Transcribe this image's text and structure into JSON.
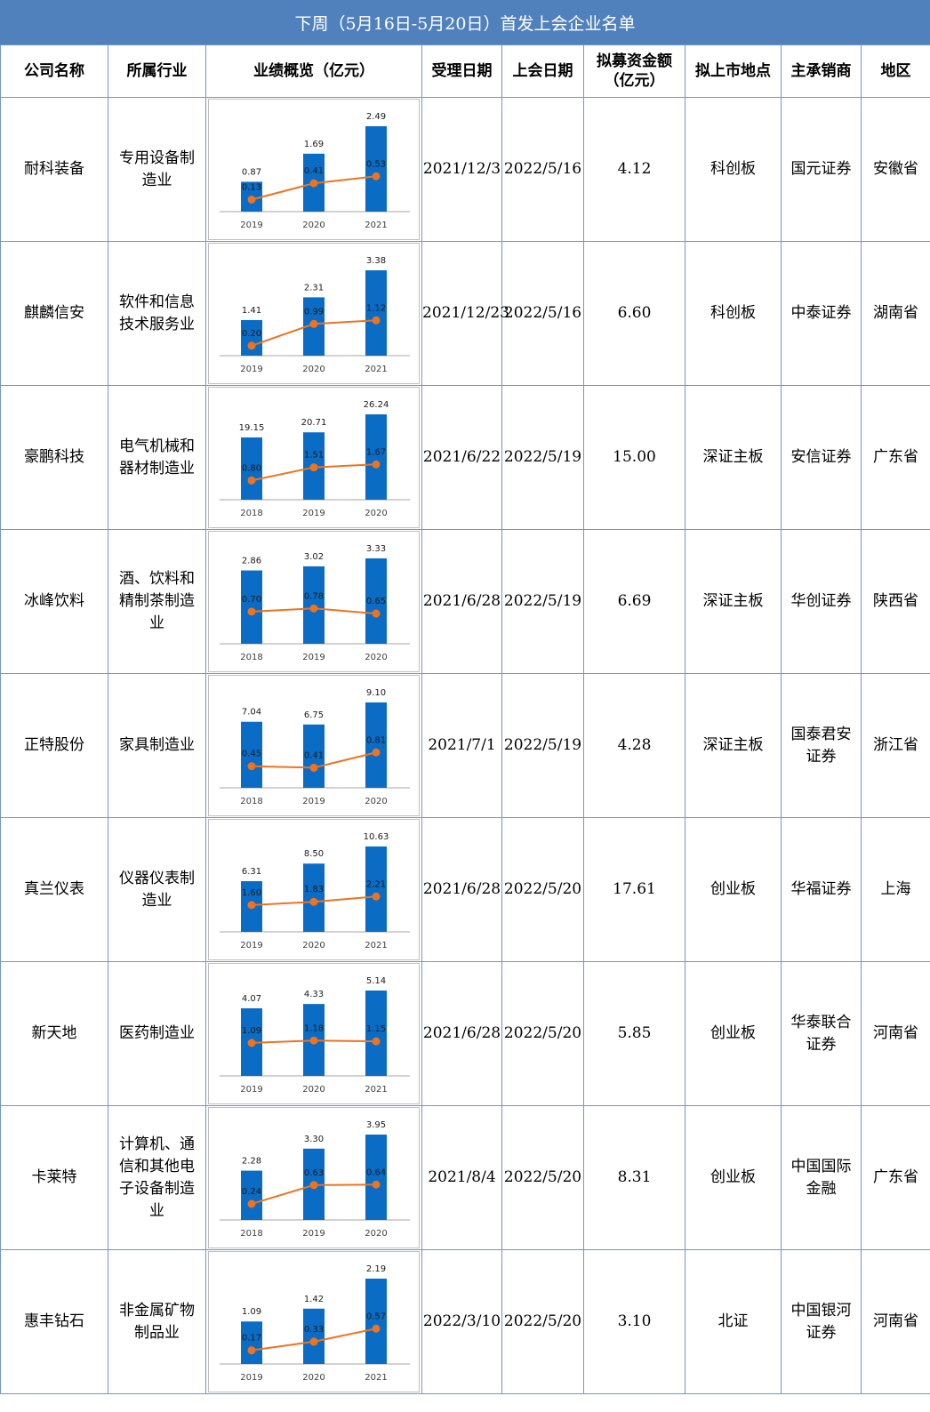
{
  "title": "下周（5月16日-5月20日）首发上会企业名单",
  "headers": {
    "company": "公司名称",
    "industry": "所属行业",
    "performance": "业绩概览（亿元）",
    "accept_date": "受理日期",
    "meeting_date": "上会日期",
    "raise_line1": "拟募资金额",
    "raise_line2": "（亿元）",
    "venue": "拟上市地点",
    "underwriter": "主承销商",
    "region": "地区"
  },
  "colors": {
    "title_bg": "#5181bd",
    "grid": "#7196c9",
    "bar": "#0a6cc4",
    "line": "#ed7320"
  },
  "rows": [
    {
      "company": "耐科装备",
      "industry": "专用设备制造业",
      "accept_date": "2021/12/3",
      "meeting_date": "2022/5/16",
      "raise": "4.12",
      "venue": "科创板",
      "underwriter": "国元证券",
      "region": "安徽省"
    },
    {
      "company": "麒麟信安",
      "industry": "软件和信息技术服务业",
      "accept_date": "2021/12/23",
      "meeting_date": "2022/5/16",
      "raise": "6.60",
      "venue": "科创板",
      "underwriter": "中泰证券",
      "region": "湖南省"
    },
    {
      "company": "豪鹏科技",
      "industry": "电气机械和器材制造业",
      "accept_date": "2021/6/22",
      "meeting_date": "2022/5/19",
      "raise": "15.00",
      "venue": "深证主板",
      "underwriter": "安信证券",
      "region": "广东省"
    },
    {
      "company": "冰峰饮料",
      "industry": "酒、饮料和精制茶制造业",
      "accept_date": "2021/6/28",
      "meeting_date": "2022/5/19",
      "raise": "6.69",
      "venue": "深证主板",
      "underwriter": "华创证券",
      "region": "陕西省"
    },
    {
      "company": "正特股份",
      "industry": "家具制造业",
      "accept_date": "2021/7/1",
      "meeting_date": "2022/5/19",
      "raise": "4.28",
      "venue": "深证主板",
      "underwriter": "国泰君安证券",
      "region": "浙江省"
    },
    {
      "company": "真兰仪表",
      "industry": "仪器仪表制造业",
      "accept_date": "2021/6/28",
      "meeting_date": "2022/5/20",
      "raise": "17.61",
      "venue": "创业板",
      "underwriter": "华福证券",
      "region": "上海"
    },
    {
      "company": "新天地",
      "industry": "医药制造业",
      "accept_date": "2021/6/28",
      "meeting_date": "2022/5/20",
      "raise": "5.85",
      "venue": "创业板",
      "underwriter": "华泰联合证券",
      "region": "河南省"
    },
    {
      "company": "卡莱特",
      "industry": "计算机、通信和其他电子设备制造业",
      "accept_date": "2021/8/4",
      "meeting_date": "2022/5/20",
      "raise": "8.31",
      "venue": "创业板",
      "underwriter": "中国国际金融",
      "region": "广东省"
    },
    {
      "company": "惠丰钻石",
      "industry": "非金属矿物制品业",
      "accept_date": "2022/3/10",
      "meeting_date": "2022/5/20",
      "raise": "3.10",
      "venue": "北证",
      "underwriter": "中国银河证券",
      "region": "河南省"
    }
  ],
  "chart_data": [
    {
      "type": "bar+line",
      "categories": [
        "2019",
        "2020",
        "2021"
      ],
      "series": [
        {
          "type": "bar",
          "values": [
            0.87,
            1.69,
            2.49
          ]
        },
        {
          "type": "line",
          "values": [
            0.13,
            0.41,
            0.53
          ]
        }
      ]
    },
    {
      "type": "bar+line",
      "categories": [
        "2019",
        "2020",
        "2021"
      ],
      "series": [
        {
          "type": "bar",
          "values": [
            1.41,
            2.31,
            3.38
          ]
        },
        {
          "type": "line",
          "values": [
            0.2,
            0.99,
            1.12
          ]
        }
      ]
    },
    {
      "type": "bar+line",
      "categories": [
        "2018",
        "2019",
        "2020"
      ],
      "series": [
        {
          "type": "bar",
          "values": [
            19.15,
            20.71,
            26.24
          ]
        },
        {
          "type": "line",
          "values": [
            0.8,
            1.51,
            1.67
          ]
        }
      ]
    },
    {
      "type": "bar+line",
      "categories": [
        "2018",
        "2019",
        "2020"
      ],
      "series": [
        {
          "type": "bar",
          "values": [
            2.86,
            3.02,
            3.33
          ]
        },
        {
          "type": "line",
          "values": [
            0.7,
            0.78,
            0.65
          ]
        }
      ]
    },
    {
      "type": "bar+line",
      "categories": [
        "2018",
        "2019",
        "2020"
      ],
      "series": [
        {
          "type": "bar",
          "values": [
            7.04,
            6.75,
            9.1
          ]
        },
        {
          "type": "line",
          "values": [
            0.45,
            0.41,
            0.81
          ]
        }
      ]
    },
    {
      "type": "bar+line",
      "categories": [
        "2019",
        "2020",
        "2021"
      ],
      "series": [
        {
          "type": "bar",
          "values": [
            6.31,
            8.5,
            10.63
          ]
        },
        {
          "type": "line",
          "values": [
            1.6,
            1.83,
            2.21
          ]
        }
      ]
    },
    {
      "type": "bar+line",
      "categories": [
        "2019",
        "2020",
        "2021"
      ],
      "series": [
        {
          "type": "bar",
          "values": [
            4.07,
            4.33,
            5.14
          ]
        },
        {
          "type": "line",
          "values": [
            1.09,
            1.18,
            1.15
          ]
        }
      ]
    },
    {
      "type": "bar+line",
      "categories": [
        "2018",
        "2019",
        "2020"
      ],
      "series": [
        {
          "type": "bar",
          "values": [
            2.28,
            3.3,
            3.95
          ]
        },
        {
          "type": "line",
          "values": [
            0.24,
            0.63,
            0.64
          ]
        }
      ]
    },
    {
      "type": "bar+line",
      "categories": [
        "2019",
        "2020",
        "2021"
      ],
      "series": [
        {
          "type": "bar",
          "values": [
            1.09,
            1.42,
            2.19
          ]
        },
        {
          "type": "line",
          "values": [
            0.17,
            0.33,
            0.57
          ]
        }
      ]
    }
  ]
}
